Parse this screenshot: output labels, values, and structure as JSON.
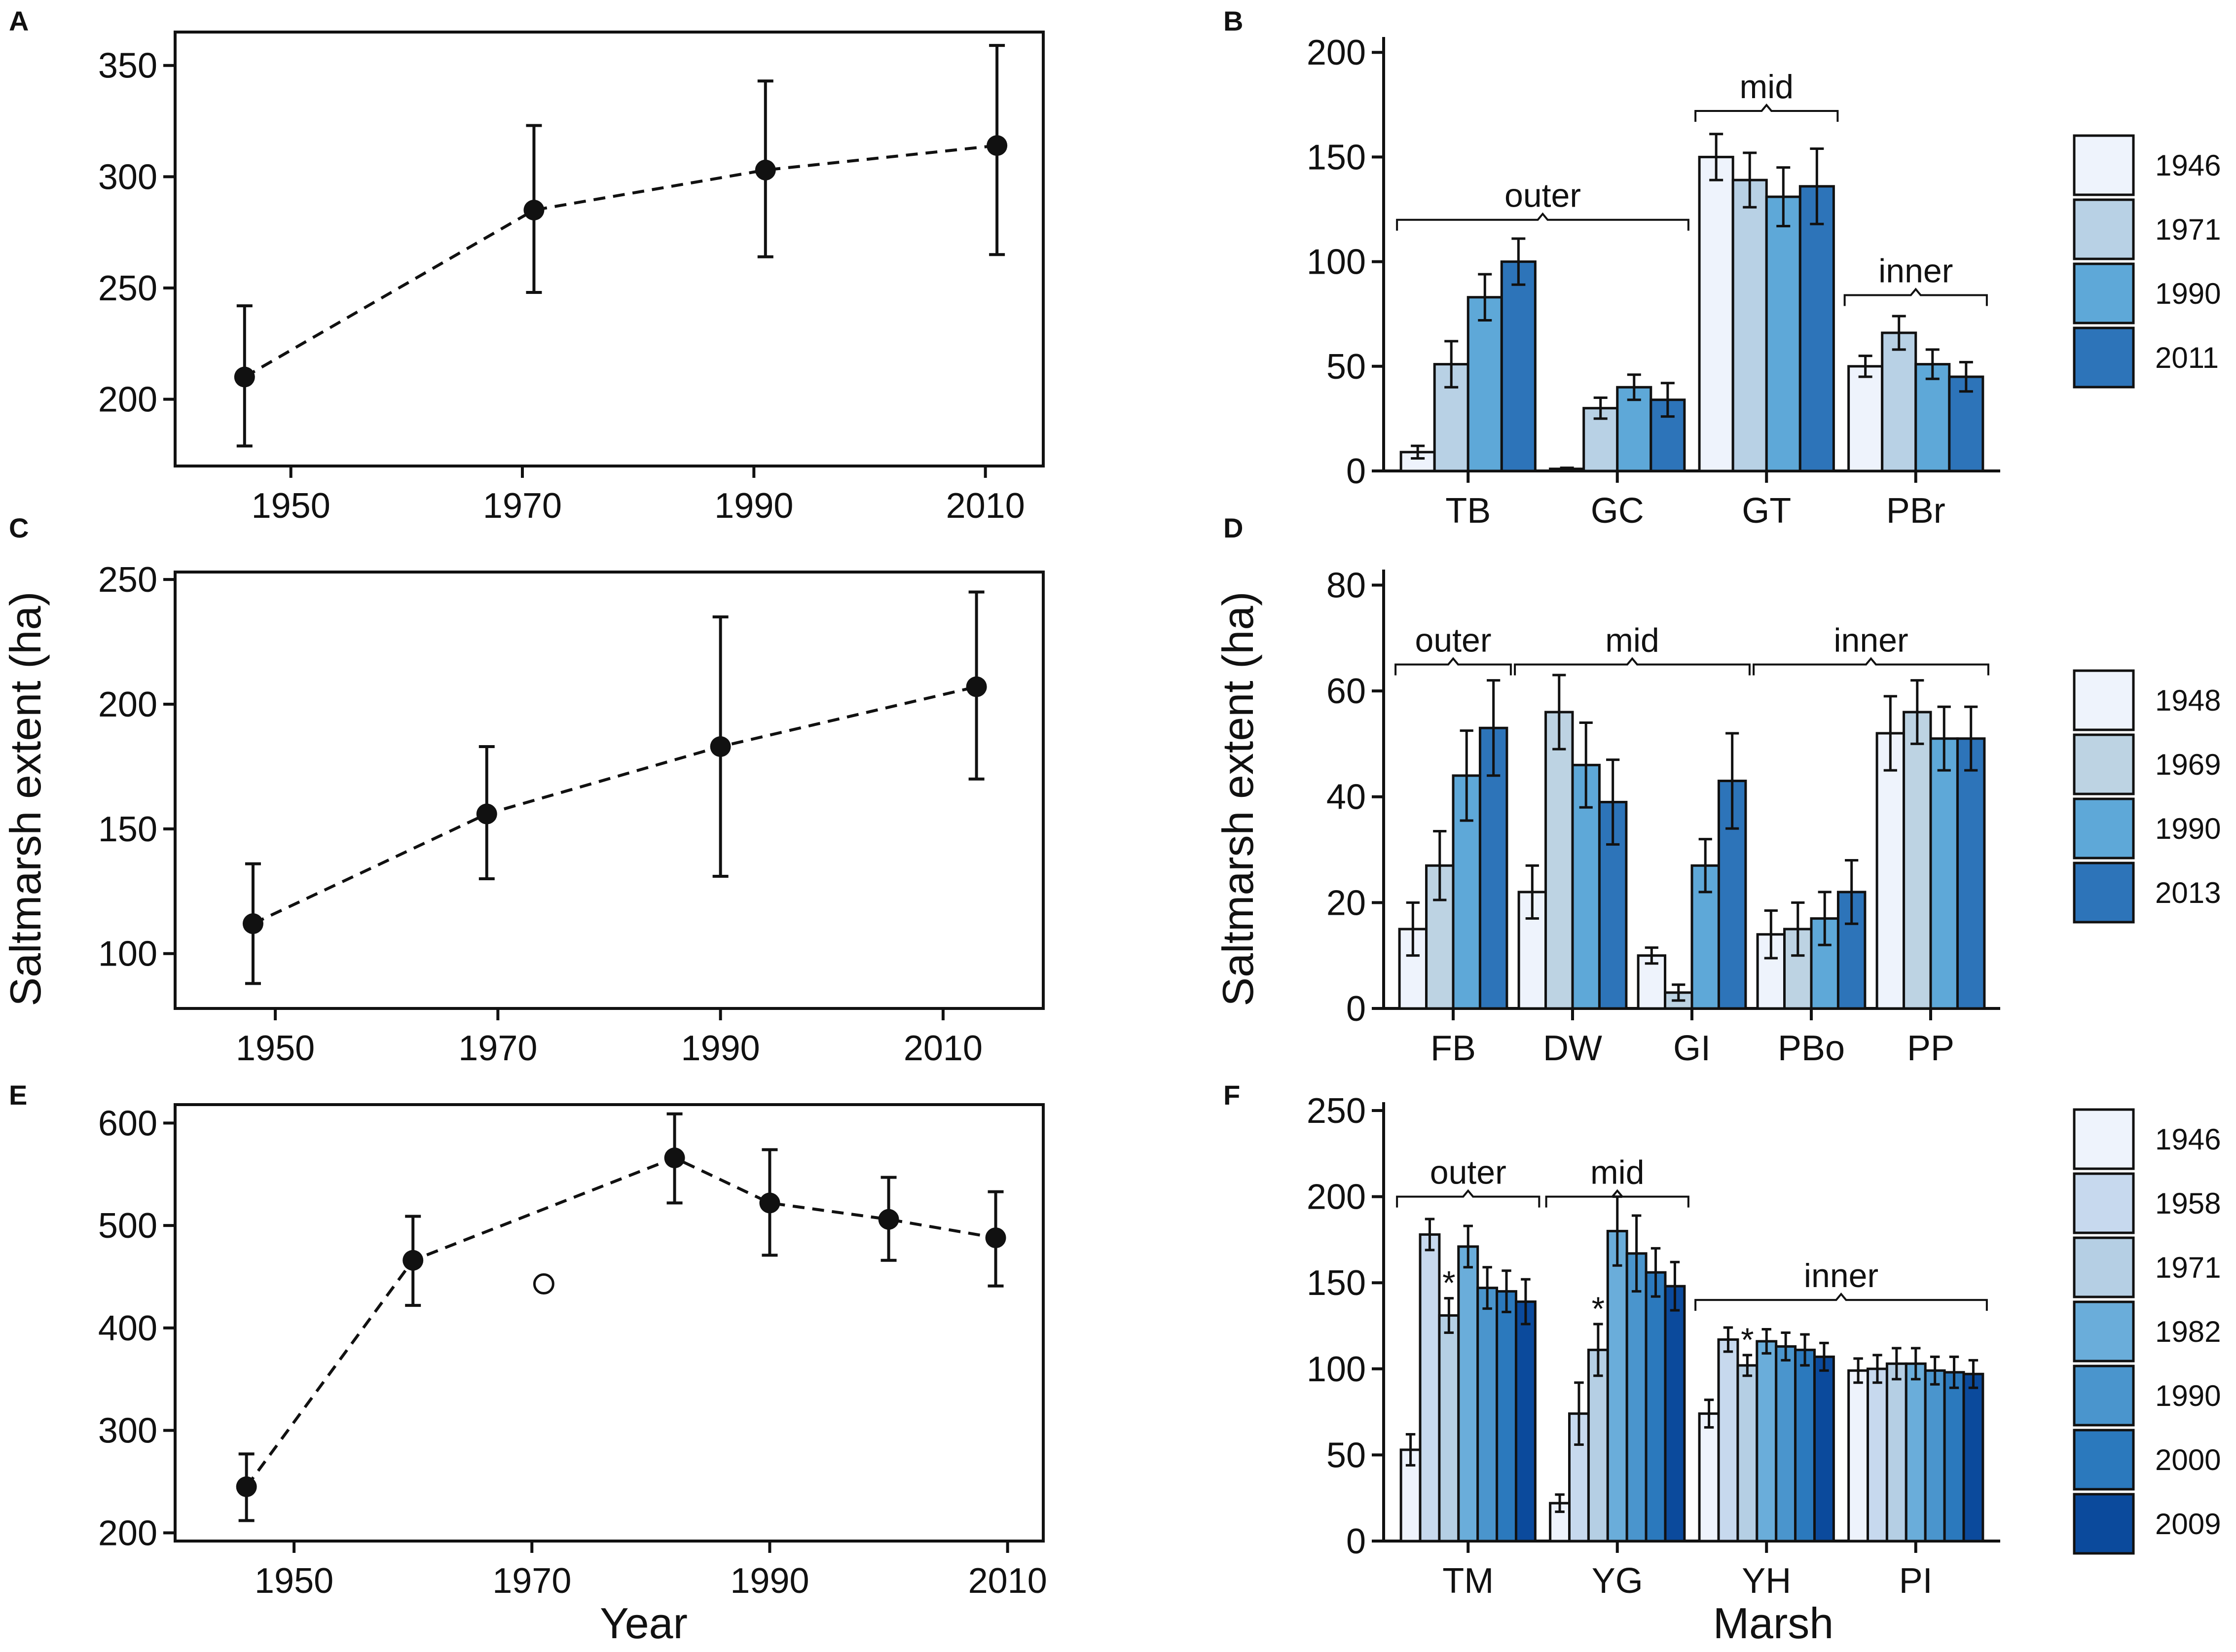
{
  "figure": {
    "shared_ylabel": "Saltmarsh extent (ha)",
    "shared_xlabel_left": "Year",
    "shared_xlabel_right": "Marsh",
    "colors": {
      "c1946": "#eef3fc",
      "c1958": "#c7d9ee",
      "c1969": "#bdd3e3",
      "c1971": "#b5cfe4",
      "c1982": "#6aadda",
      "c1990": "#5aa6d6",
      "c2000": "#2b79bd",
      "c2009": "#0b4a9c",
      "c2011": "#2d74b9",
      "ink": "#111111"
    }
  },
  "chart_data": [
    {
      "panel": "A",
      "type": "line",
      "title": "",
      "xlabel": "",
      "ylabel": "",
      "xlim": [
        1940,
        2015
      ],
      "ylim": [
        170,
        365
      ],
      "xticks": [
        1950,
        1970,
        1990,
        2010
      ],
      "yticks": [
        200,
        250,
        300,
        350
      ],
      "points": [
        {
          "x": 1946,
          "y": 210,
          "lo": 179,
          "hi": 242
        },
        {
          "x": 1971,
          "y": 285,
          "lo": 248,
          "hi": 323
        },
        {
          "x": 1991,
          "y": 303,
          "lo": 264,
          "hi": 343
        },
        {
          "x": 2011,
          "y": 314,
          "lo": 265,
          "hi": 359
        }
      ],
      "open_points": []
    },
    {
      "panel": "B",
      "type": "bar",
      "ylim": [
        0,
        205
      ],
      "yticks": [
        0,
        50,
        100,
        150,
        200
      ],
      "categories": [
        "TB",
        "GC",
        "GT",
        "PBr"
      ],
      "series": [
        {
          "name": "1946",
          "color": "#eef3fc",
          "values": [
            9,
            1,
            150,
            50
          ],
          "errors": [
            3,
            0.5,
            11,
            5
          ]
        },
        {
          "name": "1971",
          "color": "#b8d1e5",
          "values": [
            51,
            30,
            139,
            66
          ],
          "errors": [
            11,
            5,
            13,
            8
          ]
        },
        {
          "name": "1990",
          "color": "#5ea8d8",
          "values": [
            83,
            40,
            131,
            51
          ],
          "errors": [
            11,
            6,
            14,
            7
          ]
        },
        {
          "name": "2011",
          "color": "#2d74b9",
          "values": [
            100,
            34,
            136,
            45
          ],
          "errors": [
            11,
            8,
            18,
            7
          ]
        }
      ],
      "groups": [
        {
          "label": "outer",
          "from": 0,
          "to": 1,
          "y": 120
        },
        {
          "label": "mid",
          "from": 2,
          "to": 2,
          "y": 172
        },
        {
          "label": "inner",
          "from": 3,
          "to": 3,
          "y": 84
        }
      ]
    },
    {
      "panel": "C",
      "type": "line",
      "xlim": [
        1941,
        2019
      ],
      "ylim": [
        78,
        253
      ],
      "xticks": [
        1950,
        1970,
        1990,
        2010
      ],
      "yticks": [
        100,
        150,
        200,
        250
      ],
      "points": [
        {
          "x": 1948,
          "y": 112,
          "lo": 88,
          "hi": 136
        },
        {
          "x": 1969,
          "y": 156,
          "lo": 130,
          "hi": 183
        },
        {
          "x": 1990,
          "y": 183,
          "lo": 131,
          "hi": 235
        },
        {
          "x": 2013,
          "y": 207,
          "lo": 170,
          "hi": 245
        }
      ],
      "open_points": []
    },
    {
      "panel": "D",
      "type": "bar",
      "ylim": [
        0,
        82
      ],
      "yticks": [
        0,
        20,
        40,
        60,
        80
      ],
      "categories": [
        "FB",
        "DW",
        "GI",
        "PBo",
        "PP"
      ],
      "series": [
        {
          "name": "1948",
          "color": "#eef3fc",
          "values": [
            15,
            22,
            10,
            14,
            52
          ],
          "errors": [
            5,
            5,
            1.5,
            4.5,
            7
          ]
        },
        {
          "name": "1969",
          "color": "#bdd3e3",
          "values": [
            27,
            56,
            3,
            15,
            56
          ],
          "errors": [
            6.5,
            7,
            1.5,
            5,
            6
          ]
        },
        {
          "name": "1990",
          "color": "#5ea8d8",
          "values": [
            44,
            46,
            27,
            17,
            51
          ],
          "errors": [
            8.5,
            8,
            5,
            5,
            6
          ]
        },
        {
          "name": "2013",
          "color": "#2d74b9",
          "values": [
            53,
            39,
            43,
            22,
            51
          ],
          "errors": [
            9,
            8,
            9,
            6,
            6
          ]
        }
      ],
      "groups": [
        {
          "label": "outer",
          "from": 0,
          "to": 0,
          "y": 65
        },
        {
          "label": "mid",
          "from": 1,
          "to": 2,
          "y": 65
        },
        {
          "label": "inner",
          "from": 3,
          "to": 4,
          "y": 65
        }
      ]
    },
    {
      "panel": "E",
      "type": "line",
      "xlim": [
        1940,
        2013
      ],
      "ylim": [
        192,
        618
      ],
      "xticks": [
        1950,
        1970,
        1990,
        2010
      ],
      "yticks": [
        200,
        300,
        400,
        500,
        600
      ],
      "points": [
        {
          "x": 1946,
          "y": 245,
          "lo": 212,
          "hi": 277
        },
        {
          "x": 1960,
          "y": 466,
          "lo": 422,
          "hi": 509
        },
        {
          "x": 1982,
          "y": 566,
          "lo": 522,
          "hi": 609
        },
        {
          "x": 1990,
          "y": 522,
          "lo": 471,
          "hi": 574
        },
        {
          "x": 2000,
          "y": 506,
          "lo": 466,
          "hi": 547
        },
        {
          "x": 2009,
          "y": 488,
          "lo": 441,
          "hi": 533
        }
      ],
      "open_points": [
        {
          "x": 1971,
          "y": 443
        }
      ]
    },
    {
      "panel": "F",
      "type": "bar",
      "ylim": [
        0,
        252
      ],
      "yticks": [
        0,
        50,
        100,
        150,
        200,
        250
      ],
      "categories": [
        "TM",
        "YG",
        "YH",
        "PI"
      ],
      "series": [
        {
          "name": "1946",
          "color": "#eef3fc",
          "values": [
            53,
            22,
            74,
            99
          ],
          "errors": [
            9,
            5,
            8,
            7
          ]
        },
        {
          "name": "1958",
          "color": "#c7d9ee",
          "values": [
            178,
            74,
            117,
            100
          ],
          "errors": [
            9,
            18,
            7,
            8
          ]
        },
        {
          "name": "1971",
          "color": "#b5cfe4",
          "values": [
            131,
            111,
            102,
            103
          ],
          "errors": [
            10,
            15,
            6,
            9
          ]
        },
        {
          "name": "1982",
          "color": "#6aadda",
          "values": [
            171,
            180,
            116,
            103
          ],
          "errors": [
            12,
            20,
            7,
            9
          ]
        },
        {
          "name": "1990",
          "color": "#4a95cd",
          "values": [
            147,
            167,
            113,
            99
          ],
          "errors": [
            12,
            22,
            8,
            8
          ]
        },
        {
          "name": "2000",
          "color": "#2b79bd",
          "values": [
            145,
            156,
            111,
            98
          ],
          "errors": [
            12,
            14,
            9,
            9
          ]
        },
        {
          "name": "2009",
          "color": "#0b4a9c",
          "values": [
            139,
            148,
            107,
            97
          ],
          "errors": [
            13,
            14,
            8,
            8
          ]
        }
      ],
      "groups": [
        {
          "label": "outer",
          "from": 0,
          "to": 0,
          "y": 200
        },
        {
          "label": "mid",
          "from": 1,
          "to": 1,
          "y": 200
        },
        {
          "label": "inner",
          "from": 2,
          "to": 3,
          "y": 140
        }
      ],
      "asterisks": [
        {
          "category": 0,
          "series": 2,
          "text": "*"
        },
        {
          "category": 1,
          "series": 2,
          "text": "*"
        },
        {
          "category": 2,
          "series": 2,
          "text": "*"
        }
      ]
    }
  ]
}
